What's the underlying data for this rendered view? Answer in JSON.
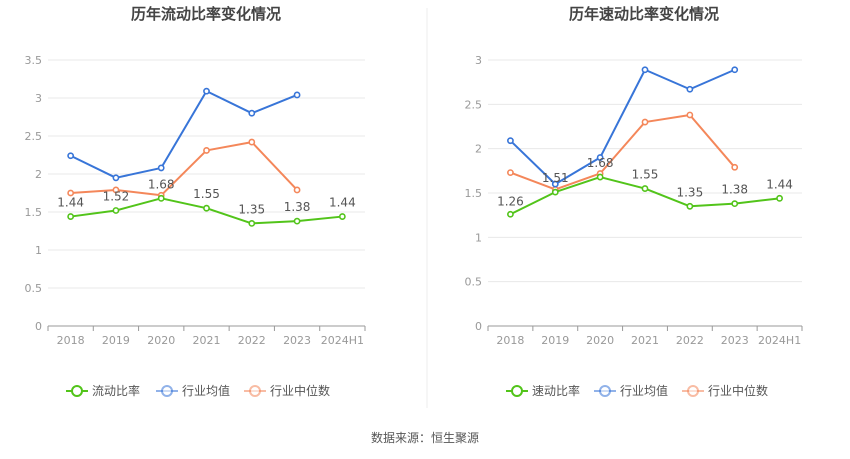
{
  "source": "数据来源：恒生聚源",
  "colors": {
    "own": "#52c41a",
    "industry_avg": "#3875d8",
    "industry_median": "#f4875a",
    "grid": "#e8e8e8",
    "axis": "#999999"
  },
  "chart_data": [
    {
      "type": "line",
      "title": "历年流动比率变化情况",
      "categories": [
        "2018",
        "2019",
        "2020",
        "2021",
        "2022",
        "2023",
        "2024H1"
      ],
      "ylim": [
        0,
        3.5
      ],
      "yticks": [
        "0",
        "0.5",
        "1",
        "1.5",
        "2",
        "2.5",
        "3",
        "3.5"
      ],
      "legend_position": "bottom",
      "series": [
        {
          "name": "流动比率",
          "key": "own",
          "values": [
            1.44,
            1.52,
            1.68,
            1.55,
            1.35,
            1.38,
            1.44
          ],
          "labels": [
            "1.44",
            "1.52",
            "1.68",
            "1.55",
            "1.35",
            "1.38",
            "1.44"
          ]
        },
        {
          "name": "行业均值",
          "key": "industry_avg",
          "values": [
            2.24,
            1.95,
            2.08,
            3.09,
            2.8,
            3.04,
            null
          ]
        },
        {
          "name": "行业中位数",
          "key": "industry_median",
          "values": [
            1.75,
            1.79,
            1.72,
            2.31,
            2.42,
            1.79,
            null
          ]
        }
      ]
    },
    {
      "type": "line",
      "title": "历年速动比率变化情况",
      "categories": [
        "2018",
        "2019",
        "2020",
        "2021",
        "2022",
        "2023",
        "2024H1"
      ],
      "ylim": [
        0,
        3
      ],
      "yticks": [
        "0",
        "0.5",
        "1",
        "1.5",
        "2",
        "2.5",
        "3"
      ],
      "legend_position": "bottom",
      "series": [
        {
          "name": "速动比率",
          "key": "own",
          "values": [
            1.26,
            1.51,
            1.68,
            1.55,
            1.35,
            1.38,
            1.44
          ],
          "labels": [
            "1.26",
            "1.51",
            "1.68",
            "1.55",
            "1.35",
            "1.38",
            "1.44"
          ]
        },
        {
          "name": "行业均值",
          "key": "industry_avg",
          "values": [
            2.09,
            1.6,
            1.9,
            2.89,
            2.67,
            2.89,
            null
          ]
        },
        {
          "name": "行业中位数",
          "key": "industry_median",
          "values": [
            1.73,
            1.54,
            1.72,
            2.3,
            2.38,
            1.79,
            null
          ]
        }
      ]
    }
  ]
}
